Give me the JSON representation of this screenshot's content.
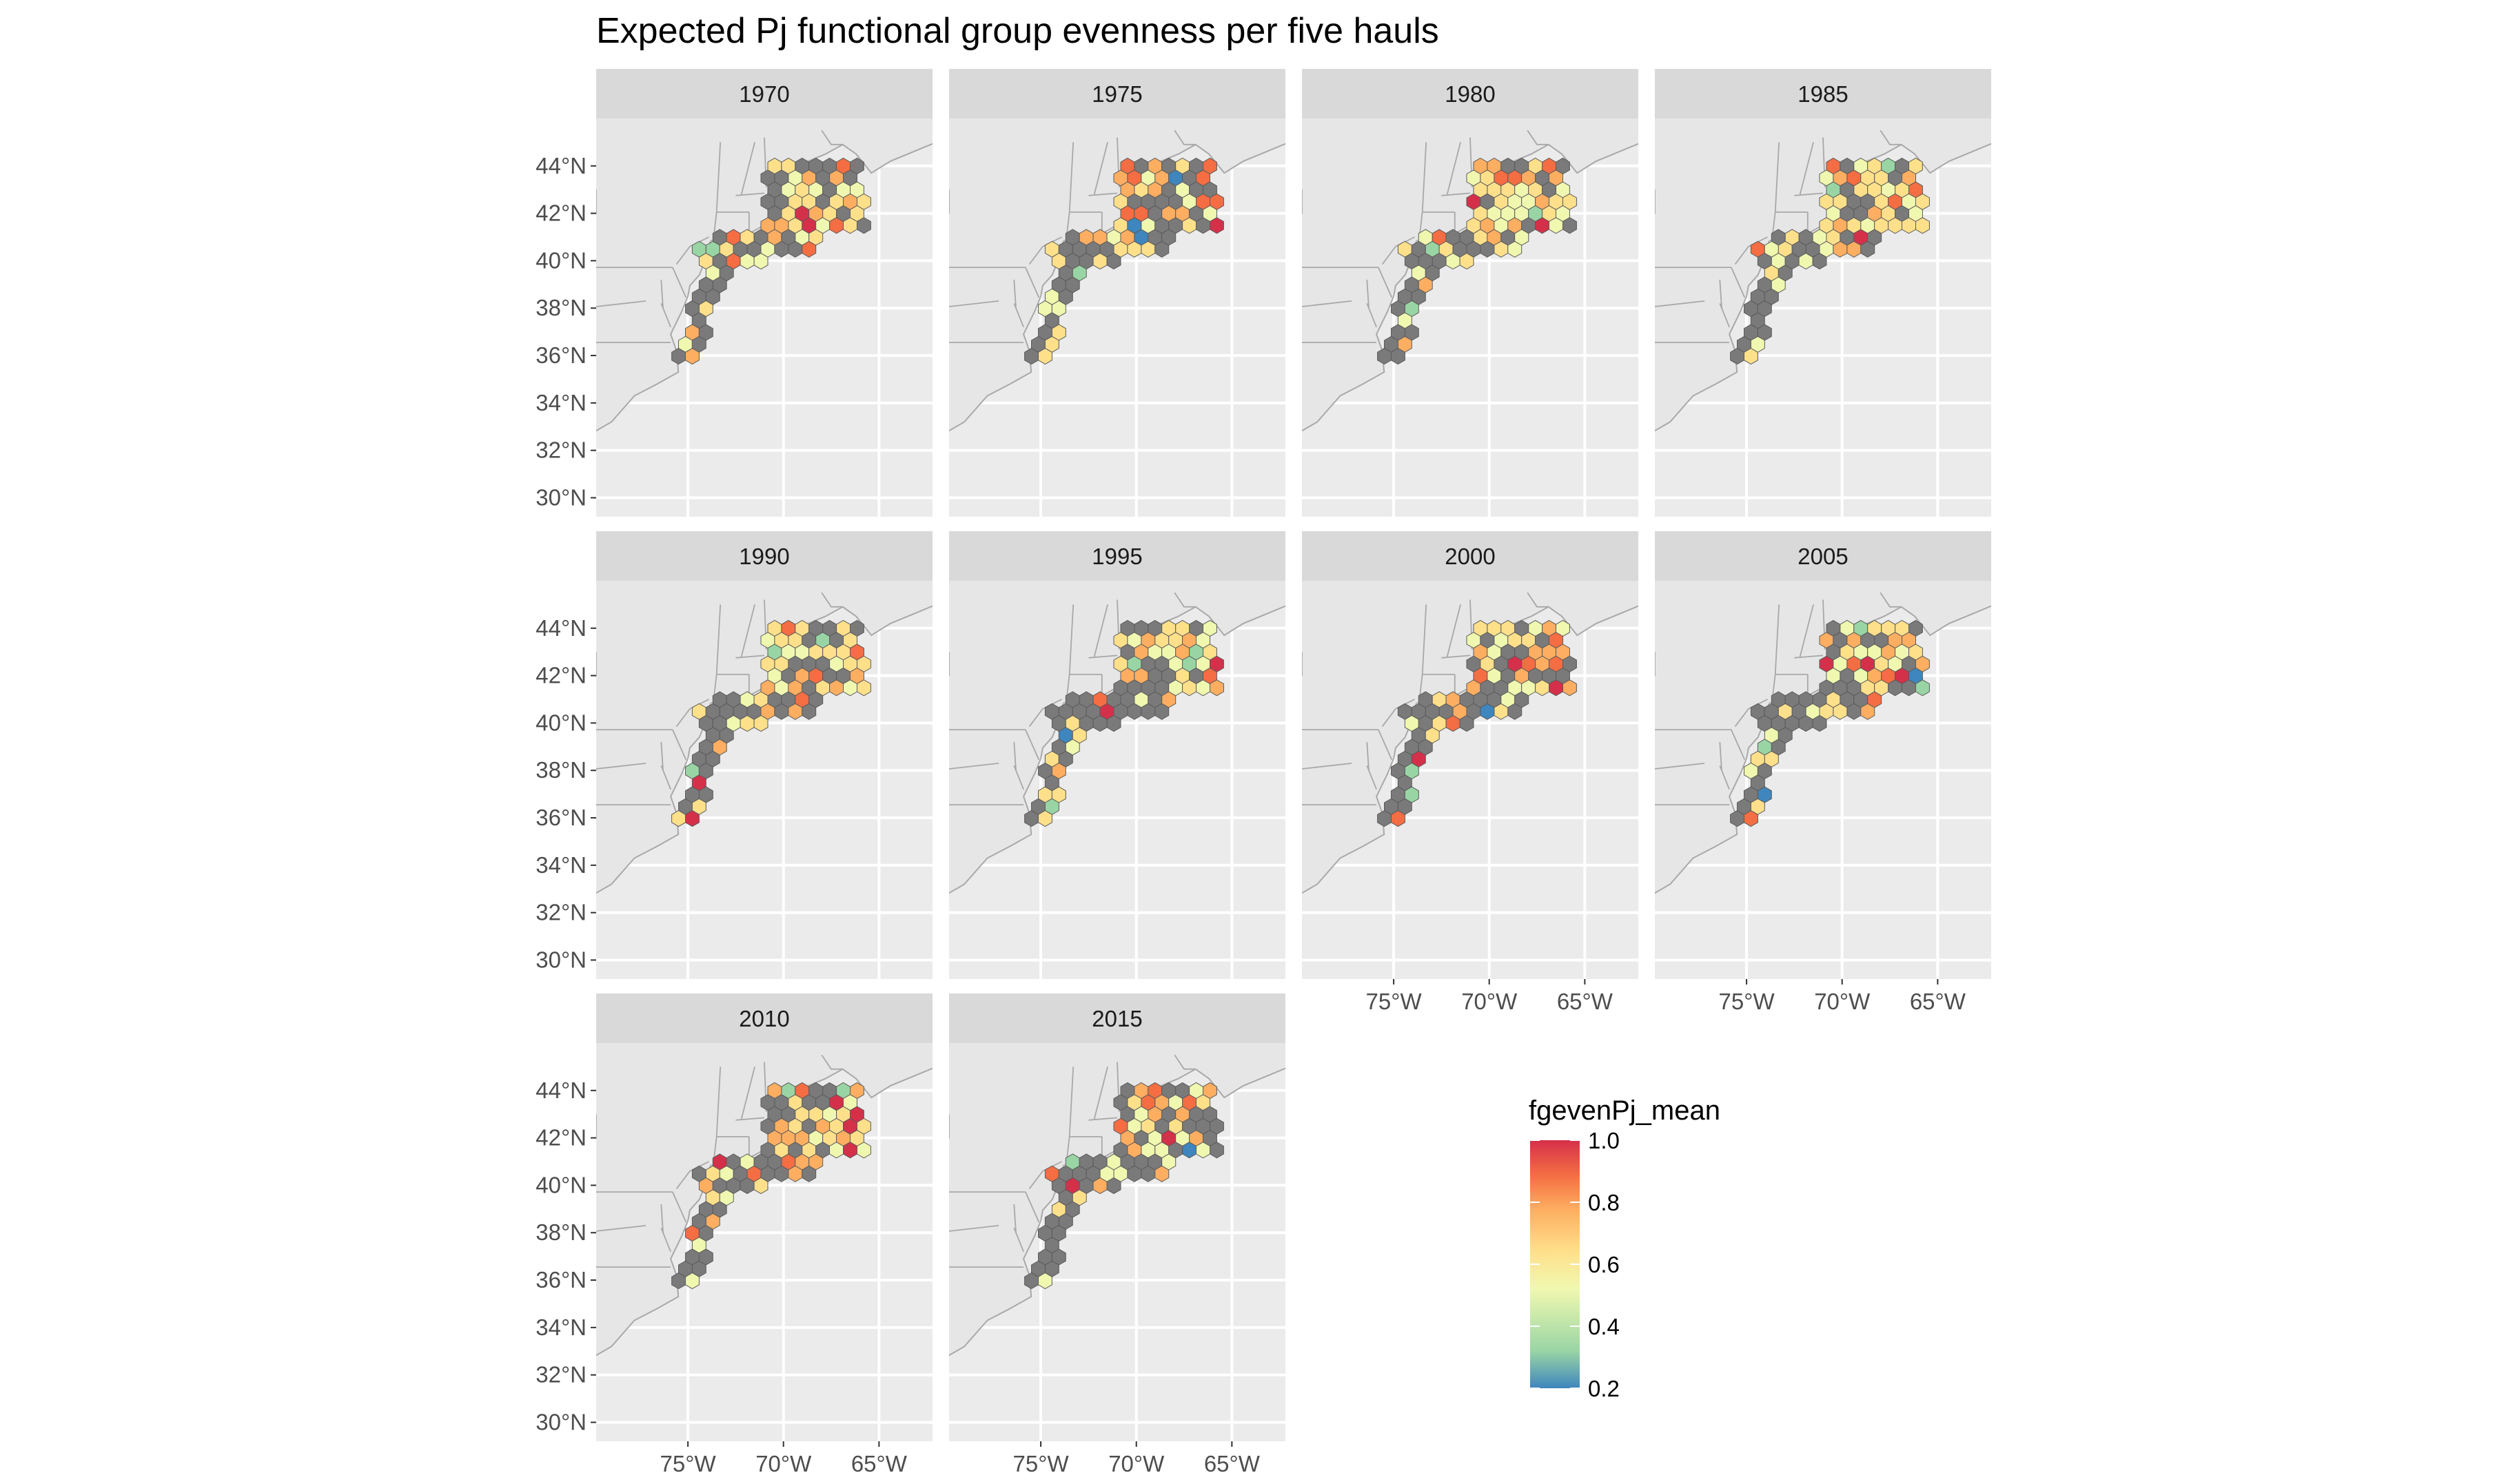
{
  "chart_data": {
    "type": "heatmap",
    "title": "Expected Pj functional group evenness per five hauls",
    "facets": [
      "1970",
      "1975",
      "1980",
      "1985",
      "1990",
      "1995",
      "2000",
      "2005",
      "2010",
      "2015"
    ],
    "x_ticks": [
      "75°W",
      "70°W",
      "65°W"
    ],
    "x_tick_values": [
      -75,
      -70,
      -65
    ],
    "y_ticks": [
      "30°N",
      "32°N",
      "34°N",
      "36°N",
      "38°N",
      "40°N",
      "42°N",
      "44°N"
    ],
    "y_tick_values": [
      30,
      32,
      34,
      36,
      38,
      40,
      42,
      44
    ],
    "xlim": [
      -79.8,
      -62.2
    ],
    "ylim": [
      29.2,
      46.0
    ],
    "legend": {
      "title": "fgevenPj_mean",
      "labels": [
        "1.0",
        "0.8",
        "0.6",
        "0.4",
        "0.2"
      ],
      "values": [
        1.0,
        0.8,
        0.6,
        0.4,
        0.2
      ],
      "range": [
        0.2,
        1.0
      ],
      "placement": "right"
    },
    "colors": {
      "panel": "#ebebeb",
      "strip": "#d9d9d9",
      "grid": "#ffffff",
      "land": "#e6e6e6",
      "border": "#a8a8a8",
      "missing": "#7a7a7a",
      "scale": [
        "#3e86bd",
        "#99d5a4",
        "#f0f8b0",
        "#fee08b",
        "#fdae61",
        "#f46d43",
        "#d5304a"
      ]
    }
  }
}
